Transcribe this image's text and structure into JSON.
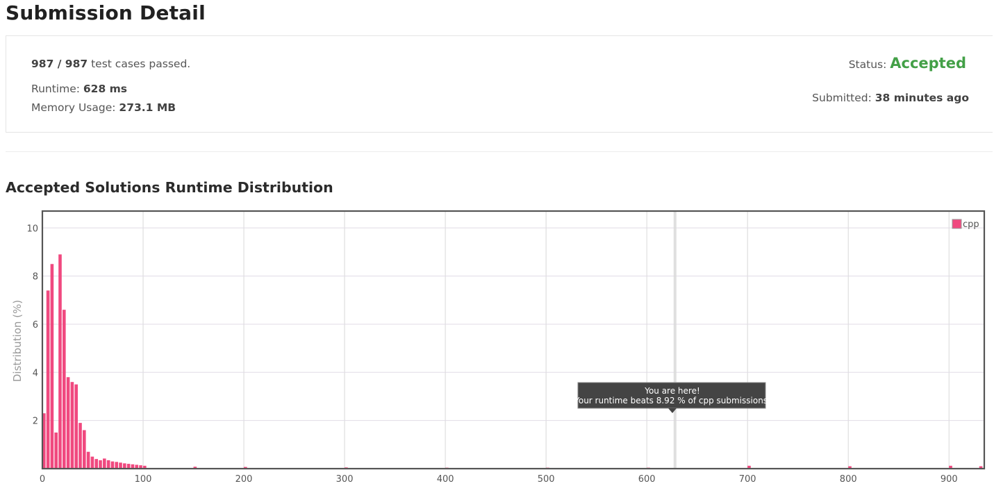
{
  "page_title": "Submission Detail",
  "summary": {
    "passed_count": "987 / 987",
    "passed_suffix": " test cases passed.",
    "runtime_label": "Runtime: ",
    "runtime_value": "628 ms",
    "memory_label": "Memory Usage: ",
    "memory_value": "273.1 MB",
    "status_label": "Status: ",
    "status_value": "Accepted",
    "submitted_label": "Submitted: ",
    "submitted_value": "38 minutes ago"
  },
  "colors": {
    "accent_pink": "#f0497f",
    "accepted_green": "#43a047"
  },
  "section_title": "Accepted Solutions Runtime Distribution",
  "tooltip": {
    "line1": "You are here!",
    "line2": "Your runtime beats 8.92 % of cpp submissions."
  },
  "chart_data": {
    "type": "bar",
    "title": "",
    "xlabel": "",
    "ylabel": "Distribution (%)",
    "xlim": [
      0,
      935
    ],
    "ylim": [
      0,
      10.7
    ],
    "x_ticks": [
      0,
      100,
      200,
      300,
      400,
      500,
      600,
      700,
      800,
      900
    ],
    "y_ticks": [
      2,
      4,
      6,
      8,
      10
    ],
    "grid": true,
    "legend_position": "top-right",
    "marker_x": 628,
    "series": [
      {
        "name": "cpp",
        "color": "#f0497f",
        "points": [
          [
            0,
            2.3
          ],
          [
            4,
            7.4
          ],
          [
            8,
            8.5
          ],
          [
            12,
            1.5
          ],
          [
            16,
            8.9
          ],
          [
            20,
            6.6
          ],
          [
            24,
            3.8
          ],
          [
            28,
            3.6
          ],
          [
            32,
            3.5
          ],
          [
            36,
            1.9
          ],
          [
            40,
            1.6
          ],
          [
            44,
            0.7
          ],
          [
            48,
            0.5
          ],
          [
            52,
            0.4
          ],
          [
            56,
            0.35
          ],
          [
            60,
            0.42
          ],
          [
            64,
            0.35
          ],
          [
            68,
            0.3
          ],
          [
            72,
            0.28
          ],
          [
            76,
            0.25
          ],
          [
            80,
            0.22
          ],
          [
            84,
            0.2
          ],
          [
            88,
            0.18
          ],
          [
            92,
            0.16
          ],
          [
            96,
            0.14
          ],
          [
            100,
            0.12
          ],
          [
            150,
            0.08
          ],
          [
            200,
            0.07
          ],
          [
            300,
            0.05
          ],
          [
            400,
            0.04
          ],
          [
            500,
            0.04
          ],
          [
            600,
            0.04
          ],
          [
            700,
            0.12
          ],
          [
            800,
            0.1
          ],
          [
            900,
            0.12
          ],
          [
            930,
            0.1
          ]
        ]
      }
    ]
  }
}
